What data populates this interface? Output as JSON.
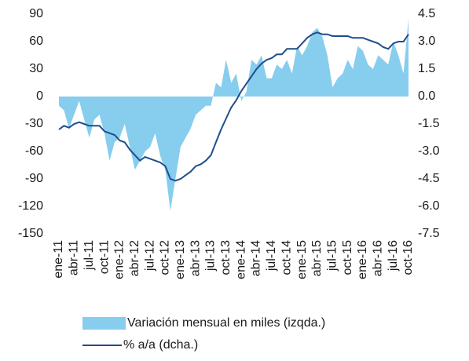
{
  "chart_data": {
    "type": "area-line",
    "categories": [
      "ene-11",
      null,
      null,
      "abr-11",
      null,
      null,
      "jul-11",
      null,
      null,
      "oct-11",
      null,
      null,
      "ene-12",
      null,
      null,
      "abr-12",
      null,
      null,
      "jul-12",
      null,
      null,
      "oct-12",
      null,
      null,
      "ene-13",
      null,
      null,
      "abr-13",
      null,
      null,
      "jul-13",
      null,
      null,
      "oct-13",
      null,
      null,
      "ene-14",
      null,
      null,
      "abr-14",
      null,
      null,
      "jul-14",
      null,
      null,
      "oct-14",
      null,
      null,
      "ene-15",
      null,
      null,
      "abr-15",
      null,
      null,
      "jul-15",
      null,
      null,
      "oct-15",
      null,
      null,
      "ene-16",
      null,
      null,
      "abr-16",
      null,
      null,
      "jul-16",
      null,
      null,
      "oct-16"
    ],
    "series": [
      {
        "name": "Variación mensual en miles (izqda.)",
        "color": "#87cdee",
        "axis": "y",
        "values": [
          -10,
          -15,
          -35,
          -20,
          -5,
          -25,
          -45,
          -25,
          -20,
          -40,
          -70,
          -50,
          -45,
          -30,
          -55,
          -80,
          -70,
          -60,
          -55,
          -40,
          -65,
          -80,
          -125,
          -90,
          -55,
          -45,
          -35,
          -20,
          -15,
          -10,
          -10,
          15,
          10,
          40,
          15,
          25,
          -5,
          5,
          40,
          35,
          45,
          20,
          20,
          35,
          30,
          40,
          25,
          55,
          45,
          55,
          70,
          75,
          65,
          45,
          10,
          20,
          25,
          40,
          30,
          55,
          50,
          35,
          30,
          45,
          40,
          35,
          60,
          45,
          25,
          85
        ]
      },
      {
        "name": "% a/a (dcha.)",
        "color": "#1f4e8c",
        "axis": "y2",
        "values": [
          -1.8,
          -1.6,
          -1.7,
          -1.5,
          -1.4,
          -1.5,
          -1.6,
          -1.6,
          -1.6,
          -1.9,
          -2.0,
          -2.1,
          -2.4,
          -2.5,
          -2.9,
          -3.2,
          -3.5,
          -3.3,
          -3.4,
          -3.5,
          -3.6,
          -3.8,
          -4.5,
          -4.6,
          -4.5,
          -4.3,
          -4.1,
          -3.8,
          -3.7,
          -3.5,
          -3.2,
          -2.5,
          -1.8,
          -1.2,
          -0.6,
          -0.2,
          0.3,
          0.7,
          1.1,
          1.5,
          1.8,
          2.0,
          2.1,
          2.3,
          2.3,
          2.6,
          2.6,
          2.6,
          2.9,
          3.2,
          3.4,
          3.5,
          3.4,
          3.4,
          3.3,
          3.3,
          3.3,
          3.3,
          3.2,
          3.2,
          3.2,
          3.1,
          3.0,
          2.9,
          2.7,
          2.6,
          2.9,
          3.0,
          3.0,
          3.4
        ]
      }
    ],
    "ylim": [
      -150,
      90
    ],
    "yticks": [
      90,
      60,
      30,
      0,
      -30,
      -60,
      -90,
      -120,
      -150
    ],
    "y2lim": [
      -7.5,
      4.5
    ],
    "y2ticks": [
      4.5,
      {
        "value": 3,
        "label": "3.0"
      },
      1.5,
      {
        "value": 0,
        "label": "0.0"
      },
      -1.5,
      {
        "value": -3,
        "label": "-3.0"
      },
      -4.5,
      {
        "value": -6,
        "label": "-6.0"
      },
      -7.5
    ],
    "legend": "bottom"
  }
}
